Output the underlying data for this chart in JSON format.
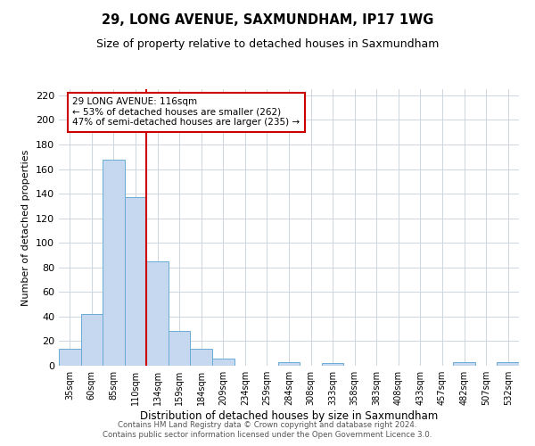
{
  "title": "29, LONG AVENUE, SAXMUNDHAM, IP17 1WG",
  "subtitle": "Size of property relative to detached houses in Saxmundham",
  "xlabel": "Distribution of detached houses by size in Saxmundham",
  "ylabel": "Number of detached properties",
  "bar_labels": [
    "35sqm",
    "60sqm",
    "85sqm",
    "110sqm",
    "134sqm",
    "159sqm",
    "184sqm",
    "209sqm",
    "234sqm",
    "259sqm",
    "284sqm",
    "308sqm",
    "333sqm",
    "358sqm",
    "383sqm",
    "408sqm",
    "433sqm",
    "457sqm",
    "482sqm",
    "507sqm",
    "532sqm"
  ],
  "bar_heights": [
    14,
    42,
    168,
    137,
    85,
    28,
    14,
    6,
    0,
    0,
    3,
    0,
    2,
    0,
    0,
    0,
    0,
    0,
    3,
    0,
    3
  ],
  "bar_color": "#c5d8ef",
  "bar_edgecolor": "#6aaad4",
  "vline_color": "#cc0000",
  "ylim": [
    0,
    225
  ],
  "yticks": [
    0,
    20,
    40,
    60,
    80,
    100,
    120,
    140,
    160,
    180,
    200,
    220
  ],
  "annotation_line1": "29 LONG AVENUE: 116sqm",
  "annotation_line2": "← 53% of detached houses are smaller (262)",
  "annotation_line3": "47% of semi-detached houses are larger (235) →",
  "annotation_box_edgecolor": "#cc0000",
  "footer_line1": "Contains HM Land Registry data © Crown copyright and database right 2024.",
  "footer_line2": "Contains public sector information licensed under the Open Government Licence 3.0.",
  "background_color": "#ffffff",
  "grid_color": "#cdd5e0"
}
